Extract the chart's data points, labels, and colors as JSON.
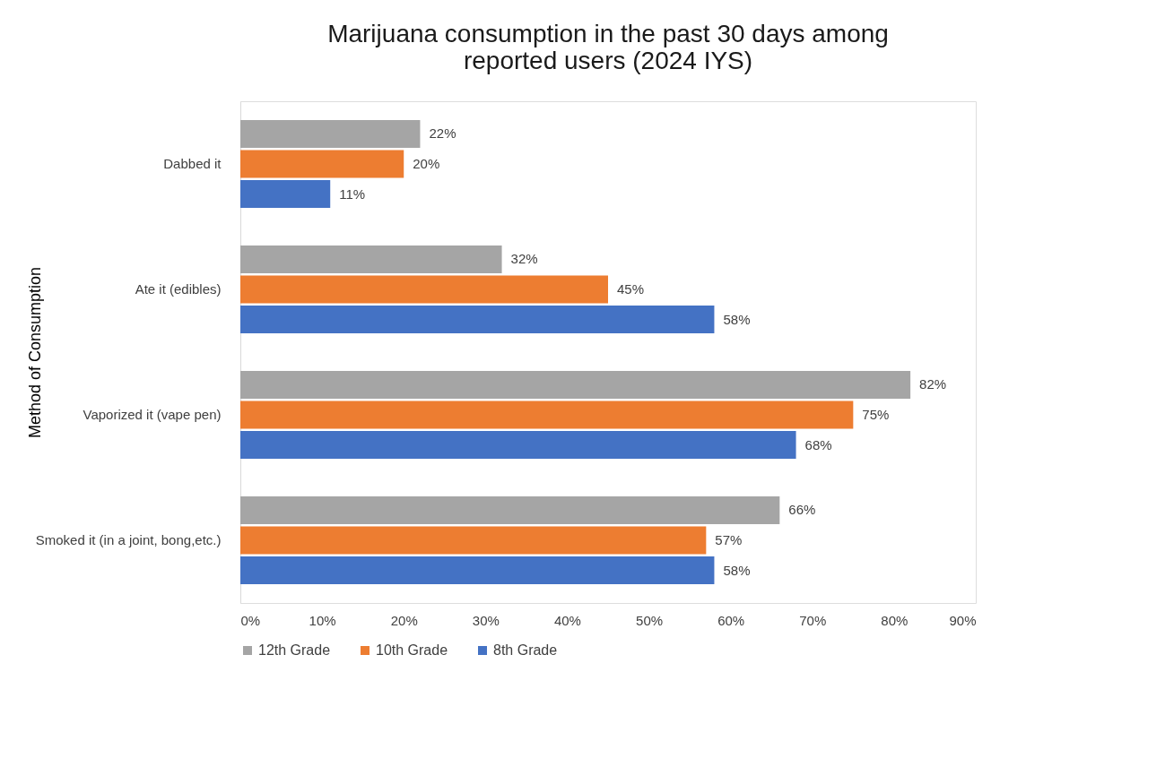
{
  "chart_data": {
    "type": "bar",
    "orientation": "horizontal",
    "title": "Marijuana consumption in the past 30 days among reported users (2024 IYS)",
    "ylabel": "Method of Consumption",
    "categories": [
      "Dabbed it",
      "Ate it (edibles)",
      "Vaporized it (vape pen)",
      "Smoked it (in a joint, bong,etc.)"
    ],
    "series": [
      {
        "name": "12th Grade",
        "color": "#a5a5a5",
        "values": [
          22,
          32,
          82,
          66
        ],
        "value_labels": [
          "22%",
          "32%",
          "82%",
          "66%"
        ]
      },
      {
        "name": "10th Grade",
        "color": "#ed7d31",
        "values": [
          20,
          45,
          75,
          57
        ],
        "value_labels": [
          "20%",
          "45%",
          "75%",
          "57%"
        ]
      },
      {
        "name": "8th Grade",
        "color": "#4472c4",
        "values": [
          11,
          58,
          68,
          58
        ],
        "value_labels": [
          "11%",
          "58%",
          "68%",
          "58%"
        ]
      }
    ],
    "xlim": [
      0,
      90
    ],
    "xticks": [
      {
        "value": 0,
        "label": "0%"
      },
      {
        "value": 10,
        "label": "10%"
      },
      {
        "value": 20,
        "label": "20%"
      },
      {
        "value": 30,
        "label": "30%"
      },
      {
        "value": 40,
        "label": "40%"
      },
      {
        "value": 50,
        "label": "50%"
      },
      {
        "value": 60,
        "label": "60%"
      },
      {
        "value": 70,
        "label": "70%"
      },
      {
        "value": 80,
        "label": "80%"
      },
      {
        "value": 90,
        "label": "90%"
      }
    ],
    "grid": false,
    "legend": "bottom"
  }
}
